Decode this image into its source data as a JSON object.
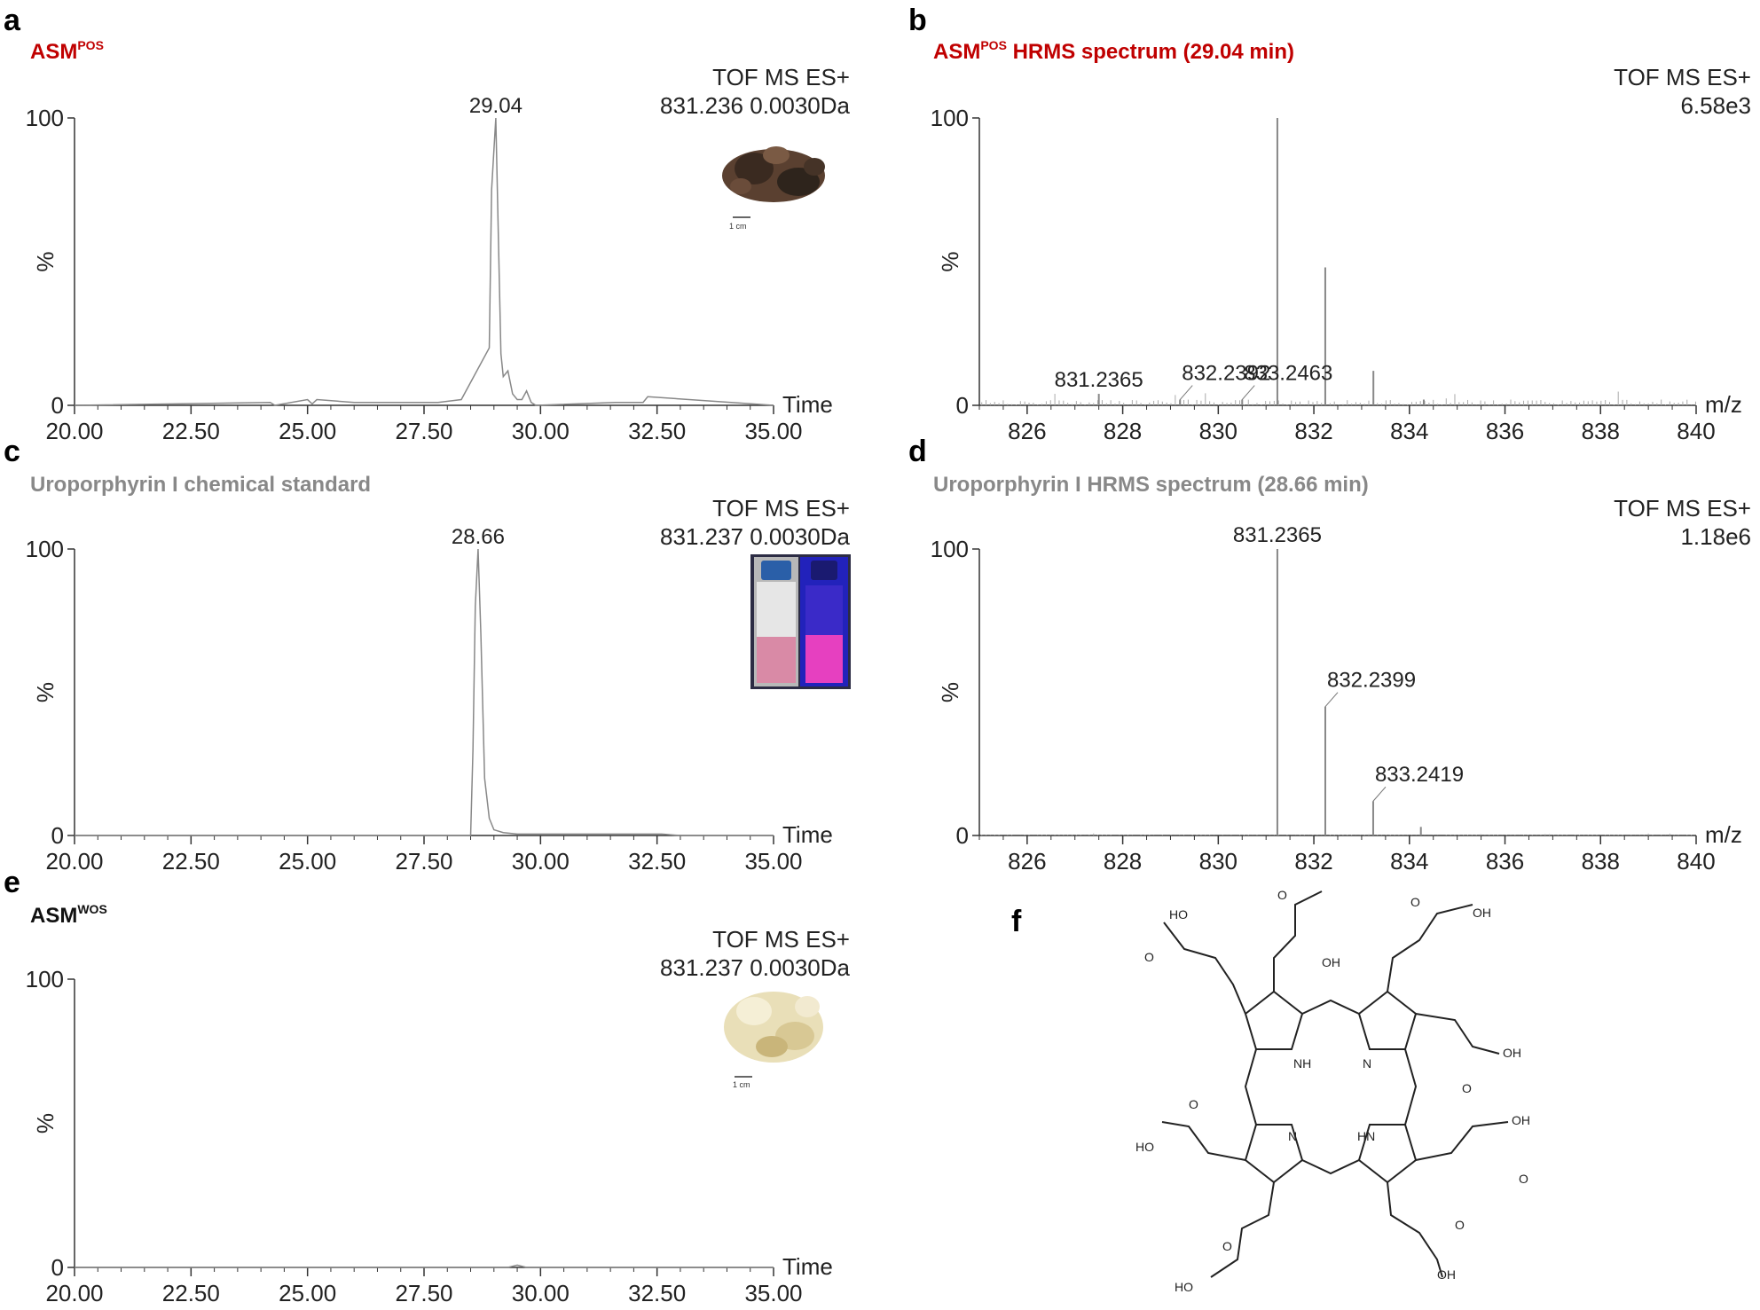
{
  "figure": {
    "panels": [
      {
        "id": "a",
        "letter": "a",
        "title": "ASM",
        "title_sup": "POS",
        "title_color": "#c00000",
        "header_1": "TOF MS ES+",
        "header_2": "831.236 0.0030Da",
        "peak_label": "29.04",
        "y_axis_label": "%",
        "x_unit": "Time",
        "y_ticks": [
          "100",
          "0"
        ],
        "x_ticks": [
          "20.00",
          "22.50",
          "25.00",
          "27.50",
          "30.00",
          "32.50",
          "35.00"
        ],
        "inset": {
          "kind": "photo-dark-fragments",
          "scale_label": "1 cm"
        }
      },
      {
        "id": "b",
        "letter": "b",
        "title": "ASM",
        "title_sup": "POS",
        "title_rest": " HRMS spectrum (29.04 min)",
        "title_color": "#c00000",
        "header_1": "TOF MS ES+",
        "header_2": "6.58e3",
        "y_axis_label": "%",
        "x_unit": "m/z",
        "y_ticks": [
          "100",
          "0"
        ],
        "x_ticks": [
          "826",
          "828",
          "830",
          "832",
          "834",
          "836",
          "838",
          "840"
        ],
        "peak_labels": [
          "831.2365",
          "832.2392",
          "833.2463"
        ]
      },
      {
        "id": "c",
        "letter": "c",
        "title": "Uroporphyrin I chemical standard",
        "title_color": "#888888",
        "header_1": "TOF MS ES+",
        "header_2": "831.237 0.0030Da",
        "peak_label": "28.66",
        "y_axis_label": "%",
        "x_unit": "Time",
        "y_ticks": [
          "100",
          "0"
        ],
        "x_ticks": [
          "20.00",
          "22.50",
          "25.00",
          "27.50",
          "30.00",
          "32.50",
          "35.00"
        ],
        "inset": {
          "kind": "photo-vials"
        }
      },
      {
        "id": "d",
        "letter": "d",
        "title": "Uroporphyrin I HRMS spectrum (28.66 min)",
        "title_color": "#888888",
        "header_1": "TOF MS ES+",
        "header_2": "1.18e6",
        "y_axis_label": "%",
        "x_unit": "m/z",
        "y_ticks": [
          "100",
          "0"
        ],
        "x_ticks": [
          "826",
          "828",
          "830",
          "832",
          "834",
          "836",
          "838",
          "840"
        ],
        "peak_labels": [
          "831.2365",
          "832.2399",
          "833.2419"
        ]
      },
      {
        "id": "e",
        "letter": "e",
        "title": "ASM",
        "title_sup": "WOS",
        "title_color": "#111111",
        "header_1": "TOF MS ES+",
        "header_2": "831.237 0.0030Da",
        "y_axis_label": "%",
        "x_unit": "Time",
        "y_ticks": [
          "100",
          "0"
        ],
        "x_ticks": [
          "20.00",
          "22.50",
          "25.00",
          "27.50",
          "30.00",
          "32.50",
          "35.00"
        ],
        "inset": {
          "kind": "photo-light-fragments",
          "scale_label": "1 cm"
        }
      },
      {
        "id": "f",
        "letter": "f",
        "kind": "chemical-structure",
        "atom_labels": [
          "OH",
          "HO",
          "O",
          "NH",
          "N",
          "HN"
        ]
      }
    ],
    "colors": {
      "trace": "#888888",
      "axis": "#333333",
      "red_title": "#c00000",
      "gray_title": "#888888"
    }
  },
  "chart_data": [
    {
      "panel": "a",
      "type": "line",
      "xlim": [
        20,
        35
      ],
      "ylim": [
        0,
        100
      ],
      "ylabel": "%",
      "xlabel": "Time",
      "x": [
        20.0,
        24.2,
        24.3,
        25.0,
        25.1,
        25.2,
        26.0,
        27.8,
        28.3,
        28.9,
        28.95,
        29.04,
        29.1,
        29.15,
        29.2,
        29.3,
        29.4,
        29.5,
        29.6,
        29.7,
        29.8,
        29.9,
        31.6,
        31.7,
        32.2,
        32.3,
        35.0
      ],
      "y": [
        0,
        1,
        0,
        2,
        0.5,
        2,
        1,
        1,
        2,
        20,
        75,
        100,
        55,
        18,
        10,
        12,
        4,
        2,
        2,
        5,
        1,
        0,
        1,
        1,
        1,
        3,
        0
      ],
      "peak_annotation": {
        "x": 29.04,
        "label": "29.04"
      }
    },
    {
      "panel": "b",
      "type": "bar",
      "xlim": [
        825,
        840
      ],
      "ylim": [
        0,
        100
      ],
      "ylabel": "%",
      "xlabel": "m/z",
      "x": [
        827.5,
        829.2,
        830.5,
        831.2365,
        832.2392,
        833.2463,
        834.3
      ],
      "values": [
        4,
        2,
        2,
        100,
        48,
        12,
        2
      ],
      "labels": [
        "831.2365",
        "832.2392",
        "833.2463"
      ],
      "noise_level": 2
    },
    {
      "panel": "c",
      "type": "line",
      "xlim": [
        20,
        35
      ],
      "ylim": [
        0,
        100
      ],
      "ylabel": "%",
      "xlabel": "Time",
      "x": [
        20.0,
        28.5,
        28.55,
        28.6,
        28.66,
        28.72,
        28.8,
        28.9,
        29.0,
        29.2,
        29.5,
        31.7,
        32.6,
        33.0,
        35.0
      ],
      "y": [
        0,
        0,
        30,
        80,
        100,
        70,
        20,
        6,
        2,
        1,
        0.5,
        0.5,
        0.5,
        0,
        0
      ],
      "peak_annotation": {
        "x": 28.66,
        "label": "28.66"
      }
    },
    {
      "panel": "d",
      "type": "bar",
      "xlim": [
        825,
        840
      ],
      "ylim": [
        0,
        100
      ],
      "ylabel": "%",
      "xlabel": "m/z",
      "x": [
        831.2365,
        832.2399,
        833.2419,
        834.24
      ],
      "values": [
        100,
        45,
        12,
        3
      ],
      "labels": [
        "831.2365",
        "832.2399",
        "833.2419"
      ],
      "noise_level": 0.3
    },
    {
      "panel": "e",
      "type": "line",
      "xlim": [
        20,
        35
      ],
      "ylim": [
        0,
        100
      ],
      "ylabel": "%",
      "xlabel": "Time",
      "x": [
        20.0,
        29.3,
        29.5,
        29.7,
        35.0
      ],
      "y": [
        0,
        0,
        0.8,
        0,
        0
      ]
    }
  ]
}
